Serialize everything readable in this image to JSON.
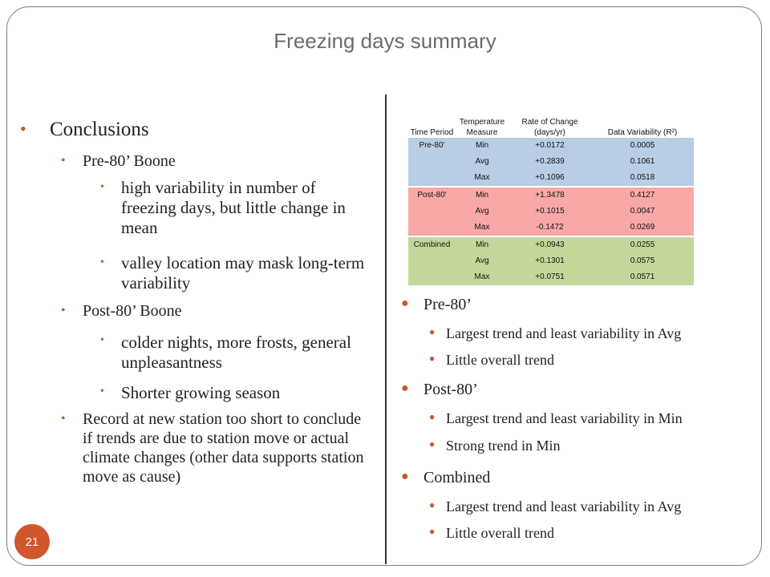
{
  "slide": {
    "title": "Freezing days summary",
    "page_number": "21",
    "accent_color": "#c8572b"
  },
  "left": {
    "heading": "Conclusions",
    "pre_label": "Pre-80’ Boone",
    "pre_items": [
      "high variability in number of freezing days, but little change in mean",
      "valley location may mask long-term variability"
    ],
    "post_label": "Post-80’ Boone",
    "post_items": [
      "colder nights, more frosts, general unpleasantness",
      "Shorter growing season"
    ],
    "record_note": "Record at new station too short to conclude if trends are due to station move or actual climate changes (other data supports station move as cause)"
  },
  "table": {
    "headers": [
      "Time Period",
      "Temperature Measure",
      "Rate of Change (days/yr)",
      "Data Variability (R²)"
    ],
    "groups": [
      {
        "period": "Pre-80'",
        "color": "#b9cde4",
        "rows": [
          [
            "Min",
            "+0.0172",
            "0.0005"
          ],
          [
            "Avg",
            "+0.2839",
            "0.1061"
          ],
          [
            "Max",
            "+0.1096",
            "0.0518"
          ]
        ]
      },
      {
        "period": "Post-80'",
        "color": "#f9a8a8",
        "rows": [
          [
            "Min",
            "+1.3478",
            "0.4127"
          ],
          [
            "Avg",
            "+0.1015",
            "0.0047"
          ],
          [
            "Max",
            "-0.1472",
            "0.0269"
          ]
        ]
      },
      {
        "period": "Combined",
        "color": "#c4d79b",
        "rows": [
          [
            "Min",
            "+0.0943",
            "0.0255"
          ],
          [
            "Avg",
            "+0.1301",
            "0.0575"
          ],
          [
            "Max",
            "+0.0751",
            "0.0571"
          ]
        ]
      }
    ]
  },
  "right": {
    "sections": [
      {
        "label": "Pre-80’",
        "items": [
          "Largest trend and least variability in Avg",
          "Little overall trend"
        ]
      },
      {
        "label": "Post-80’",
        "items": [
          "Largest trend and least variability in Min",
          "Strong trend in Min"
        ]
      },
      {
        "label": "Combined",
        "items": [
          "Largest trend and least variability in Avg",
          "Little overall trend"
        ]
      }
    ]
  }
}
